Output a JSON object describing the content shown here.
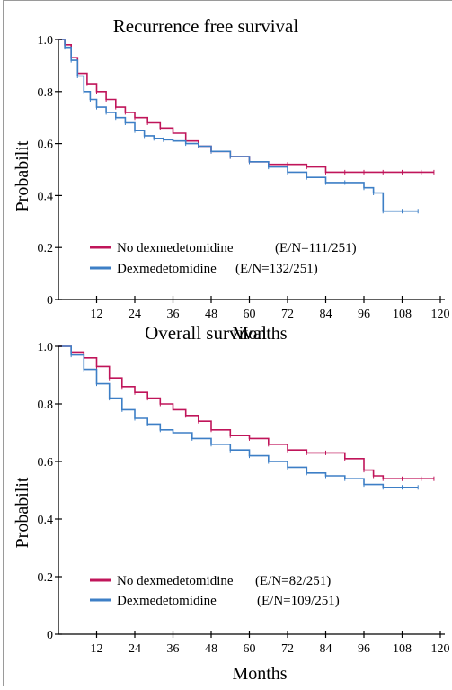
{
  "colors": {
    "no_dex": "#c0155a",
    "dex": "#3d7fc6",
    "axis": "#000000"
  },
  "chart_data": [
    {
      "type": "line",
      "title": "Recurrence free survival",
      "xlabel": "Months",
      "ylabel": "Probabilit",
      "xlim": [
        0,
        120
      ],
      "ylim": [
        0,
        1.0
      ],
      "x_ticks": [
        "12",
        "24",
        "36",
        "48",
        "60",
        "72",
        "84",
        "96",
        "108",
        "120"
      ],
      "y_ticks": [
        "0",
        "0.2",
        "0.4",
        "0.6",
        "0.8",
        "1.0"
      ],
      "grid": false,
      "legend_position": "bottom-left",
      "series": [
        {
          "name": "No dexmedetomidine",
          "stat": "(E/N=111/251)",
          "color": "#c0155a",
          "x": [
            0,
            2,
            4,
            6,
            9,
            12,
            15,
            18,
            21,
            24,
            28,
            32,
            36,
            40,
            44,
            48,
            54,
            60,
            66,
            72,
            78,
            84,
            90,
            96,
            102,
            108,
            114,
            118
          ],
          "y": [
            1.0,
            0.98,
            0.93,
            0.87,
            0.83,
            0.8,
            0.77,
            0.74,
            0.72,
            0.7,
            0.68,
            0.66,
            0.64,
            0.61,
            0.59,
            0.57,
            0.55,
            0.53,
            0.52,
            0.52,
            0.51,
            0.49,
            0.49,
            0.49,
            0.49,
            0.49,
            0.49,
            0.49
          ]
        },
        {
          "name": "Dexmedetomidine",
          "stat": "(E/N=132/251)",
          "color": "#3d7fc6",
          "x": [
            0,
            2,
            4,
            6,
            8,
            10,
            12,
            15,
            18,
            21,
            24,
            27,
            30,
            33,
            36,
            40,
            44,
            48,
            54,
            60,
            66,
            72,
            78,
            84,
            90,
            96,
            99,
            102,
            108,
            113
          ],
          "y": [
            1.0,
            0.97,
            0.92,
            0.86,
            0.8,
            0.77,
            0.74,
            0.72,
            0.7,
            0.68,
            0.65,
            0.63,
            0.62,
            0.615,
            0.61,
            0.6,
            0.59,
            0.57,
            0.55,
            0.53,
            0.51,
            0.49,
            0.47,
            0.45,
            0.45,
            0.43,
            0.41,
            0.34,
            0.34,
            0.34
          ]
        }
      ],
      "step": true
    },
    {
      "type": "line",
      "title": "Overall survival",
      "xlabel": "Months",
      "ylabel": "Probabilit",
      "xlim": [
        0,
        120
      ],
      "ylim": [
        0,
        1.0
      ],
      "x_ticks": [
        "12",
        "24",
        "36",
        "48",
        "60",
        "72",
        "84",
        "96",
        "108",
        "120"
      ],
      "y_ticks": [
        "0",
        "0.2",
        "0.4",
        "0.6",
        "0.8",
        "1.0"
      ],
      "grid": false,
      "legend_position": "bottom-left",
      "series": [
        {
          "name": "No dexmedetomidine",
          "stat": "(E/N=82/251)",
          "color": "#c0155a",
          "x": [
            0,
            4,
            8,
            12,
            16,
            20,
            24,
            28,
            32,
            36,
            40,
            44,
            48,
            54,
            60,
            66,
            72,
            78,
            84,
            90,
            96,
            99,
            102,
            108,
            114,
            118
          ],
          "y": [
            1.0,
            0.98,
            0.96,
            0.93,
            0.89,
            0.86,
            0.84,
            0.82,
            0.8,
            0.78,
            0.76,
            0.74,
            0.71,
            0.69,
            0.68,
            0.66,
            0.64,
            0.63,
            0.63,
            0.61,
            0.57,
            0.55,
            0.54,
            0.54,
            0.54,
            0.54
          ]
        },
        {
          "name": "Dexmedetomidine",
          "stat": "(E/N=109/251)",
          "color": "#3d7fc6",
          "x": [
            0,
            4,
            8,
            12,
            16,
            20,
            24,
            28,
            32,
            36,
            42,
            48,
            54,
            60,
            66,
            72,
            78,
            84,
            90,
            96,
            102,
            108,
            113
          ],
          "y": [
            1.0,
            0.97,
            0.92,
            0.87,
            0.82,
            0.78,
            0.75,
            0.73,
            0.71,
            0.7,
            0.68,
            0.66,
            0.64,
            0.62,
            0.6,
            0.58,
            0.56,
            0.55,
            0.54,
            0.52,
            0.51,
            0.51,
            0.51
          ]
        }
      ],
      "step": true
    }
  ]
}
